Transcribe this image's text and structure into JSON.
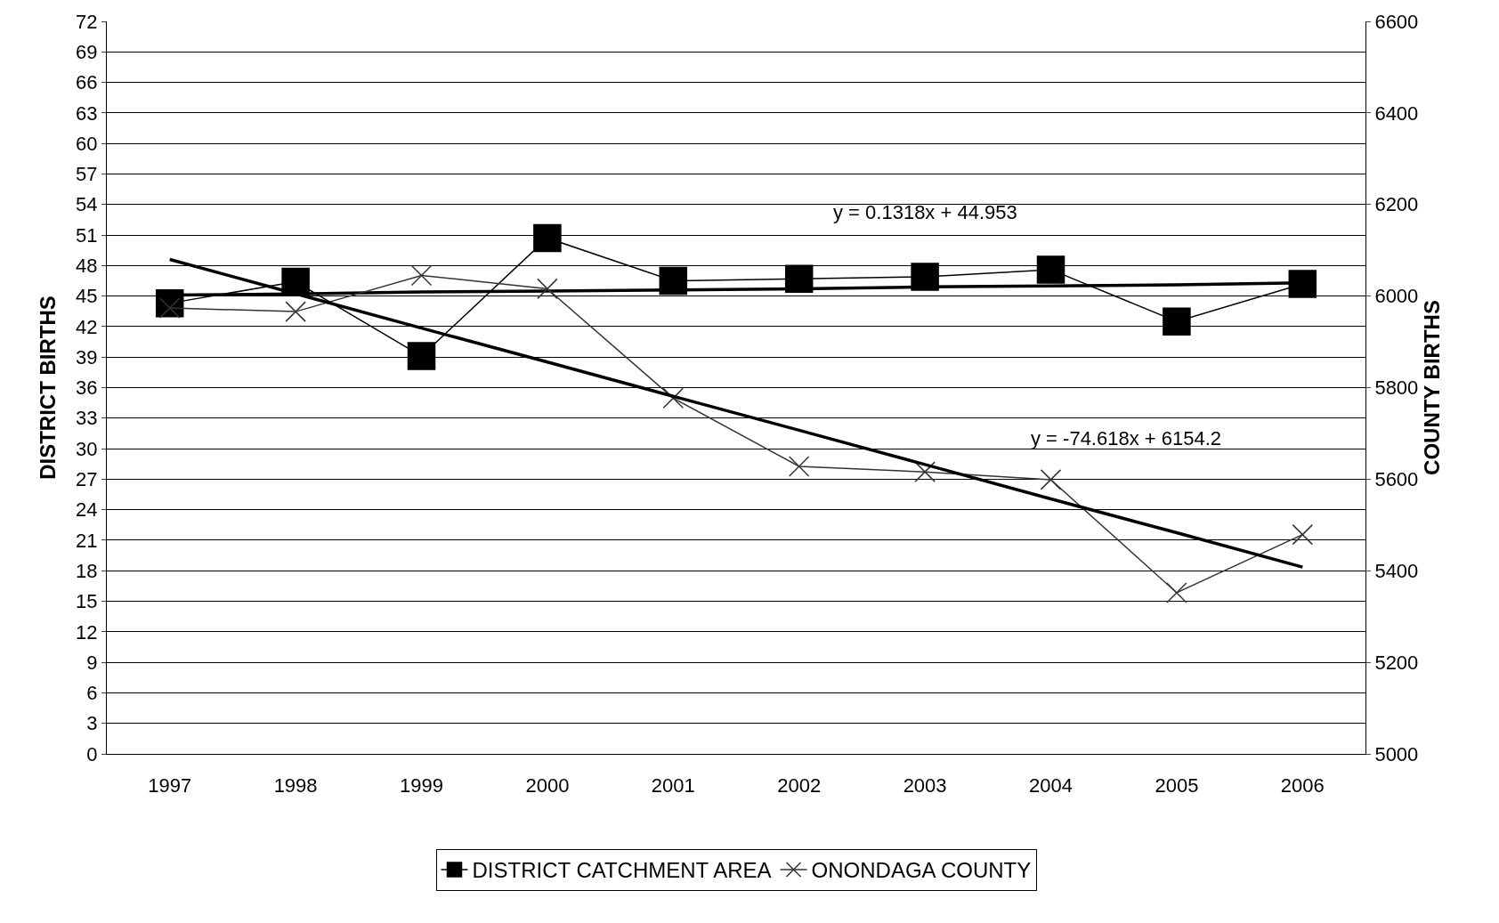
{
  "chart_data": {
    "type": "line",
    "categories": [
      "1997",
      "1998",
      "1999",
      "2000",
      "2001",
      "2002",
      "2003",
      "2004",
      "2005",
      "2006"
    ],
    "ylabel": "DISTRICT BIRTHS",
    "y2label": "COUNTY BIRTHS",
    "series": [
      {
        "name": "DISTRICT CATCHMENT AREA",
        "color": "#000000",
        "marker": "square",
        "values": [
          44.3,
          46.4,
          39.1,
          50.7,
          46.5,
          46.7,
          46.9,
          47.6,
          42.5,
          46.2
        ]
      },
      {
        "name": "ONONDAGA COUNTY",
        "color": "#333333",
        "marker": "cross",
        "axis": "y2",
        "values": [
          5974,
          5966,
          6045,
          6016,
          5777,
          5628,
          5616,
          5599,
          5352,
          5479
        ]
      },
      {
        "type": "line",
        "color": "#000000",
        "marker": "none",
        "values": [
          45.1,
          45.2,
          45.4,
          45.5,
          45.6,
          45.7,
          45.9,
          46,
          46.1,
          46.3
        ]
      },
      {
        "type": "line",
        "color": "#000000",
        "marker": "none",
        "axis": "y2",
        "values": [
          6080,
          6005,
          5930,
          5856,
          5781,
          5707,
          5632,
          5557,
          5483,
          5408
        ]
      }
    ],
    "annotations": [
      "y = 0.1318x + 44.953",
      "y = -74.618x + 6154.2"
    ],
    "ylim": [
      0,
      72
    ],
    "yticks": [
      0,
      3,
      6,
      9,
      12,
      15,
      18,
      21,
      24,
      27,
      30,
      33,
      36,
      39,
      42,
      45,
      48,
      51,
      54,
      57,
      60,
      63,
      66,
      69,
      72
    ],
    "y2lim": [
      5000,
      6600
    ],
    "y2ticks": [
      5000,
      5200,
      5400,
      5600,
      5800,
      6000,
      6200,
      6400,
      6600
    ],
    "grid": "y",
    "legend": "bottom"
  }
}
